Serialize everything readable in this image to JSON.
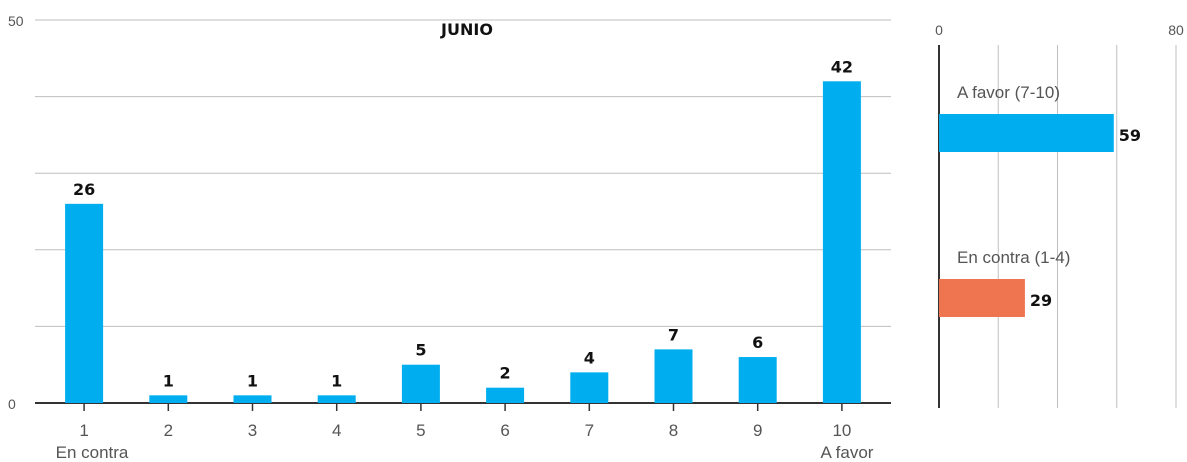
{
  "chart_data": [
    {
      "type": "bar",
      "title": "JUNIO",
      "xlabel": "",
      "ylabel": "",
      "ylim": [
        0,
        50
      ],
      "y_ticks": [
        "0",
        "50"
      ],
      "grid": true,
      "categories": [
        "1",
        "2",
        "3",
        "4",
        "5",
        "6",
        "7",
        "8",
        "9",
        "10"
      ],
      "category_sublabels": [
        "En contra",
        "",
        "",
        "",
        "",
        "",
        "",
        "",
        "",
        "A favor"
      ],
      "values": [
        26,
        1,
        1,
        1,
        5,
        2,
        4,
        7,
        6,
        42
      ],
      "color": "#00AEEF"
    },
    {
      "type": "bar",
      "orientation": "horizontal",
      "xlim": [
        0,
        80
      ],
      "x_ticks": [
        "0",
        "80"
      ],
      "grid": true,
      "categories": [
        "A favor (7-10)",
        "En contra (1-4)"
      ],
      "values": [
        59,
        29
      ],
      "colors": [
        "#00AEEF",
        "#EF7550"
      ]
    }
  ]
}
